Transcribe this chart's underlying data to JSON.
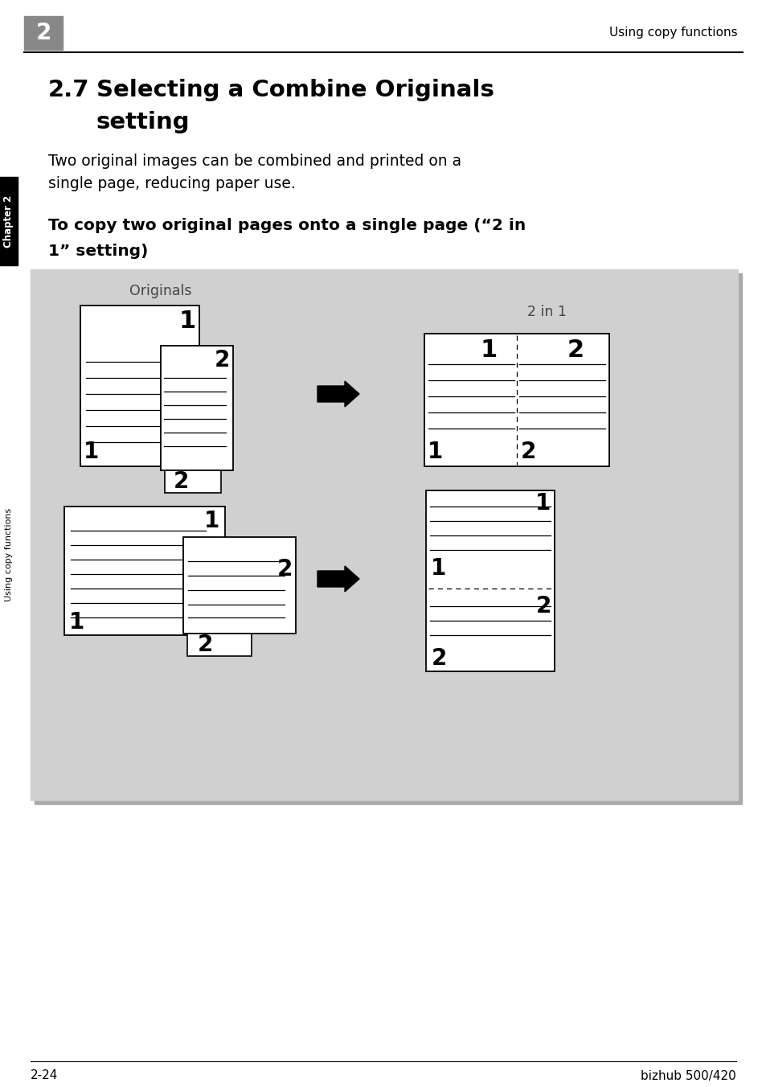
{
  "page_bg": "#ffffff",
  "header_bar_color": "#888888",
  "header_number": "2",
  "header_right_text": "Using copy functions",
  "chapter_tab_color": "#000000",
  "chapter_tab_text": "Chapter 2",
  "side_tab_text": "Using copy functions",
  "title_line1": "2.7    Selecting a Combine Originals",
  "title_line2": "          setting",
  "body_text_line1": "Two original images can be combined and printed on a",
  "body_text_line2": "single page, reducing paper use.",
  "subtitle_line1": "To copy two original pages onto a single page (“2 in",
  "subtitle_line2": "1” setting)",
  "diagram_bg": "#d0d0d0",
  "originals_label": "Originals",
  "two_in_one_label": "2 in 1",
  "footer_left": "2-24",
  "footer_right": "bizhub 500/420"
}
